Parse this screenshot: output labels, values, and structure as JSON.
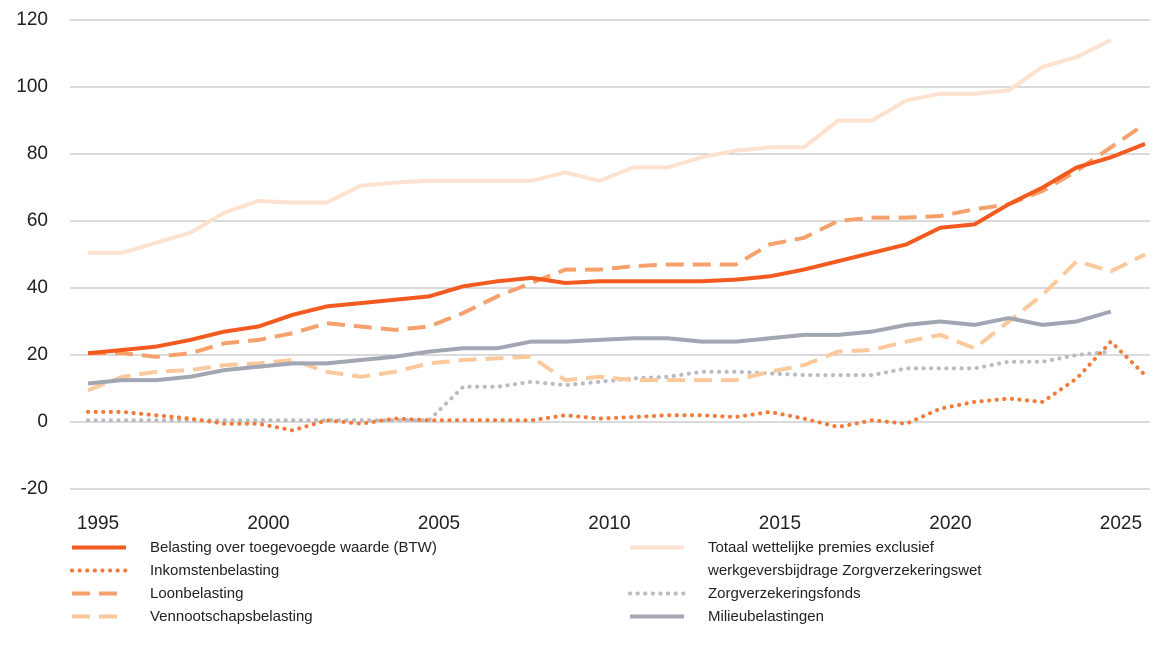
{
  "chart_data": {
    "type": "line",
    "x": [
      1995,
      1996,
      1997,
      1998,
      1999,
      2000,
      2001,
      2002,
      2003,
      2004,
      2005,
      2006,
      2007,
      2008,
      2009,
      2010,
      2011,
      2012,
      2013,
      2014,
      2015,
      2016,
      2017,
      2018,
      2019,
      2020,
      2021,
      2022,
      2023,
      2024,
      2025,
      2026
    ],
    "xlim": [
      1995,
      2026
    ],
    "xticks": [
      1995,
      2000,
      2005,
      2010,
      2015,
      2020,
      2025
    ],
    "ylim": [
      -20,
      120
    ],
    "yticks": [
      -20,
      0,
      20,
      40,
      60,
      80,
      100,
      120
    ],
    "grid": true,
    "series": [
      {
        "name": "Belasting over toegevoegde waarde (BTW)",
        "color": "#f25a1f",
        "style": "solid",
        "values": [
          20.5,
          21.5,
          22.5,
          24.5,
          27,
          28.5,
          32,
          34.5,
          35.5,
          36.5,
          37.5,
          40.5,
          42,
          43,
          41.5,
          42,
          42,
          42,
          42,
          42.5,
          43.5,
          45.5,
          48,
          50.5,
          53,
          58,
          59,
          65,
          70,
          76,
          79,
          83
        ]
      },
      {
        "name": "Inkomstenbelasting",
        "color": "#f27b3a",
        "style": "dotted",
        "values": [
          3,
          3,
          2,
          1,
          -0.5,
          -0.5,
          -2.5,
          0.5,
          -0.5,
          1,
          0.5,
          0.5,
          0.5,
          0.5,
          2,
          1,
          1.5,
          2,
          2,
          1.5,
          3,
          1,
          -1.5,
          0.5,
          -0.5,
          4,
          6,
          7,
          6,
          13,
          24,
          14
        ]
      },
      {
        "name": "Loonbelasting",
        "color": "#f6a06c",
        "style": "dashed",
        "values": [
          20.5,
          20.5,
          19.5,
          20.5,
          23.5,
          24.5,
          26.5,
          29.5,
          28.5,
          27.5,
          28.5,
          32.5,
          37.5,
          41.5,
          45.5,
          45.5,
          46.5,
          47,
          47,
          47,
          53,
          55,
          60,
          61,
          61,
          61.5,
          63.5,
          65,
          69,
          75,
          82,
          89
        ]
      },
      {
        "name": "Vennootschapsbelasting",
        "color": "#fcc99c",
        "style": "dashed",
        "values": [
          9.5,
          13.5,
          15,
          15.5,
          17,
          17.5,
          18.5,
          15,
          13.5,
          15,
          17.5,
          18.5,
          19,
          19.5,
          12.5,
          13.5,
          12.5,
          12.5,
          12.5,
          12.5,
          15,
          17,
          21,
          21.5,
          24,
          26,
          22,
          30,
          38,
          48,
          45,
          50
        ]
      },
      {
        "name": "Totaal wettelijke premies exclusief werkgeversbijdrage Zorgverzekeringswet",
        "color": "#fde2cf",
        "style": "solid",
        "values": [
          50.5,
          50.5,
          53.5,
          56.5,
          62.5,
          66,
          65.5,
          65.5,
          70.5,
          71.5,
          72,
          72,
          72,
          72,
          74.5,
          72,
          76,
          76,
          79,
          81,
          82,
          82,
          90,
          90,
          96,
          98,
          98,
          99,
          106,
          109,
          114,
          null
        ]
      },
      {
        "name": "Zorgverzekeringsfonds",
        "color": "#b8bbc3",
        "style": "dotted",
        "values": [
          0.5,
          0.5,
          0.5,
          0.5,
          0.5,
          0.5,
          0.5,
          0.5,
          0.5,
          0.5,
          0.5,
          10.5,
          10.5,
          12,
          11,
          12,
          13,
          13.5,
          15,
          15,
          14.5,
          14,
          14,
          14,
          16,
          16,
          16,
          18,
          18,
          20,
          21,
          null
        ]
      },
      {
        "name": "Milieubelastingen",
        "color": "#a2a5b2",
        "style": "solid",
        "values": [
          11.5,
          12.5,
          12.5,
          13.5,
          15.5,
          16.5,
          17.5,
          17.5,
          18.5,
          19.5,
          21,
          22,
          22,
          24,
          24,
          24.5,
          25,
          25,
          24,
          24,
          25,
          26,
          26,
          27,
          29,
          30,
          29,
          31,
          29,
          30,
          33,
          null
        ]
      }
    ]
  }
}
